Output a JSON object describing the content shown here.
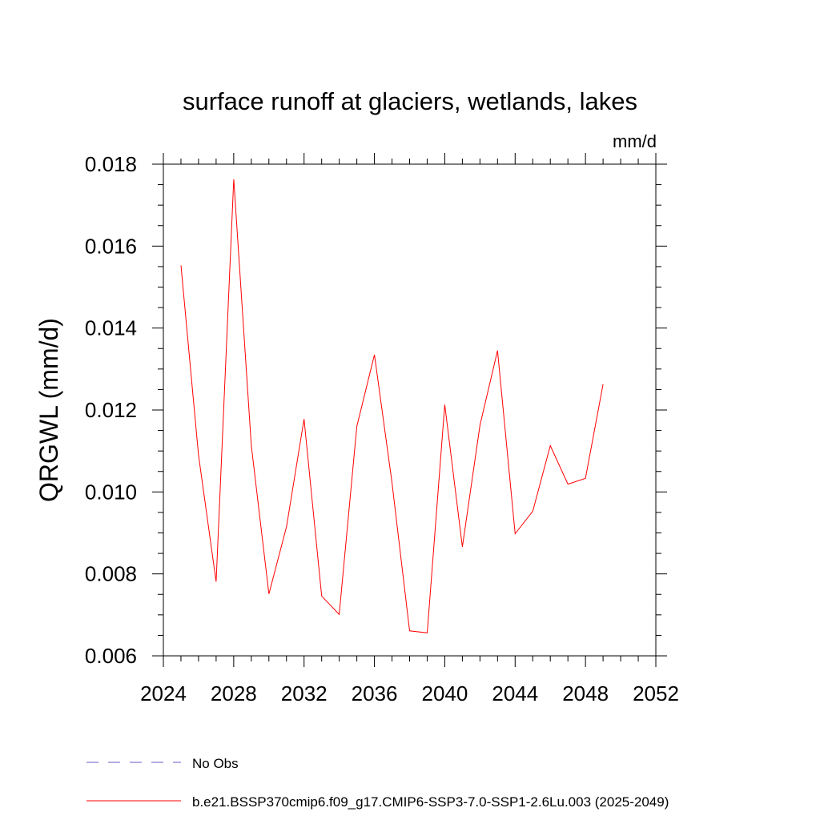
{
  "chart_data": {
    "type": "line",
    "title": "surface runoff at glaciers, wetlands, lakes",
    "units_label": "mm/d",
    "ylabel": "QRGWL  (mm/d)",
    "xlabel": "",
    "xlim": [
      2024,
      2052
    ],
    "ylim": [
      0.006,
      0.018
    ],
    "x_ticks": [
      2024,
      2028,
      2032,
      2036,
      2040,
      2044,
      2048,
      2052
    ],
    "x_tick_labels": [
      "2024",
      "2028",
      "2032",
      "2036",
      "2040",
      "2044",
      "2048",
      "2052"
    ],
    "y_ticks": [
      0.006,
      0.008,
      0.01,
      0.012,
      0.014,
      0.016,
      0.018
    ],
    "y_tick_labels": [
      "0.006",
      "0.008",
      "0.010",
      "0.012",
      "0.014",
      "0.016",
      "0.018"
    ],
    "grid": false,
    "legend_placement": "bottom",
    "series": [
      {
        "name": "b.e21.BSSP370cmip6.f09_g17.CMIP6-SSP3-7.0-SSP1-2.6Lu.003 (2025-2049)",
        "color": "#ff0000",
        "dash": "solid",
        "x": [
          2025,
          2026,
          2027,
          2028,
          2029,
          2030,
          2031,
          2032,
          2033,
          2034,
          2035,
          2036,
          2037,
          2038,
          2039,
          2040,
          2041,
          2042,
          2043,
          2044,
          2045,
          2046,
          2047,
          2048,
          2049
        ],
        "y": [
          0.01553,
          0.0109,
          0.00781,
          0.01763,
          0.01114,
          0.00751,
          0.00915,
          0.01178,
          0.00746,
          0.00701,
          0.0116,
          0.01335,
          0.01023,
          0.00661,
          0.00656,
          0.01213,
          0.00866,
          0.01163,
          0.01345,
          0.00898,
          0.00953,
          0.01113,
          0.01019,
          0.01033,
          0.01263
        ]
      }
    ],
    "legend": [
      {
        "label": "No Obs",
        "color": "#6a5acd",
        "dash": "dashed"
      },
      {
        "label": "b.e21.BSSP370cmip6.f09_g17.CMIP6-SSP3-7.0-SSP1-2.6Lu.003 (2025-2049)",
        "color": "#ff0000",
        "dash": "solid"
      }
    ]
  }
}
